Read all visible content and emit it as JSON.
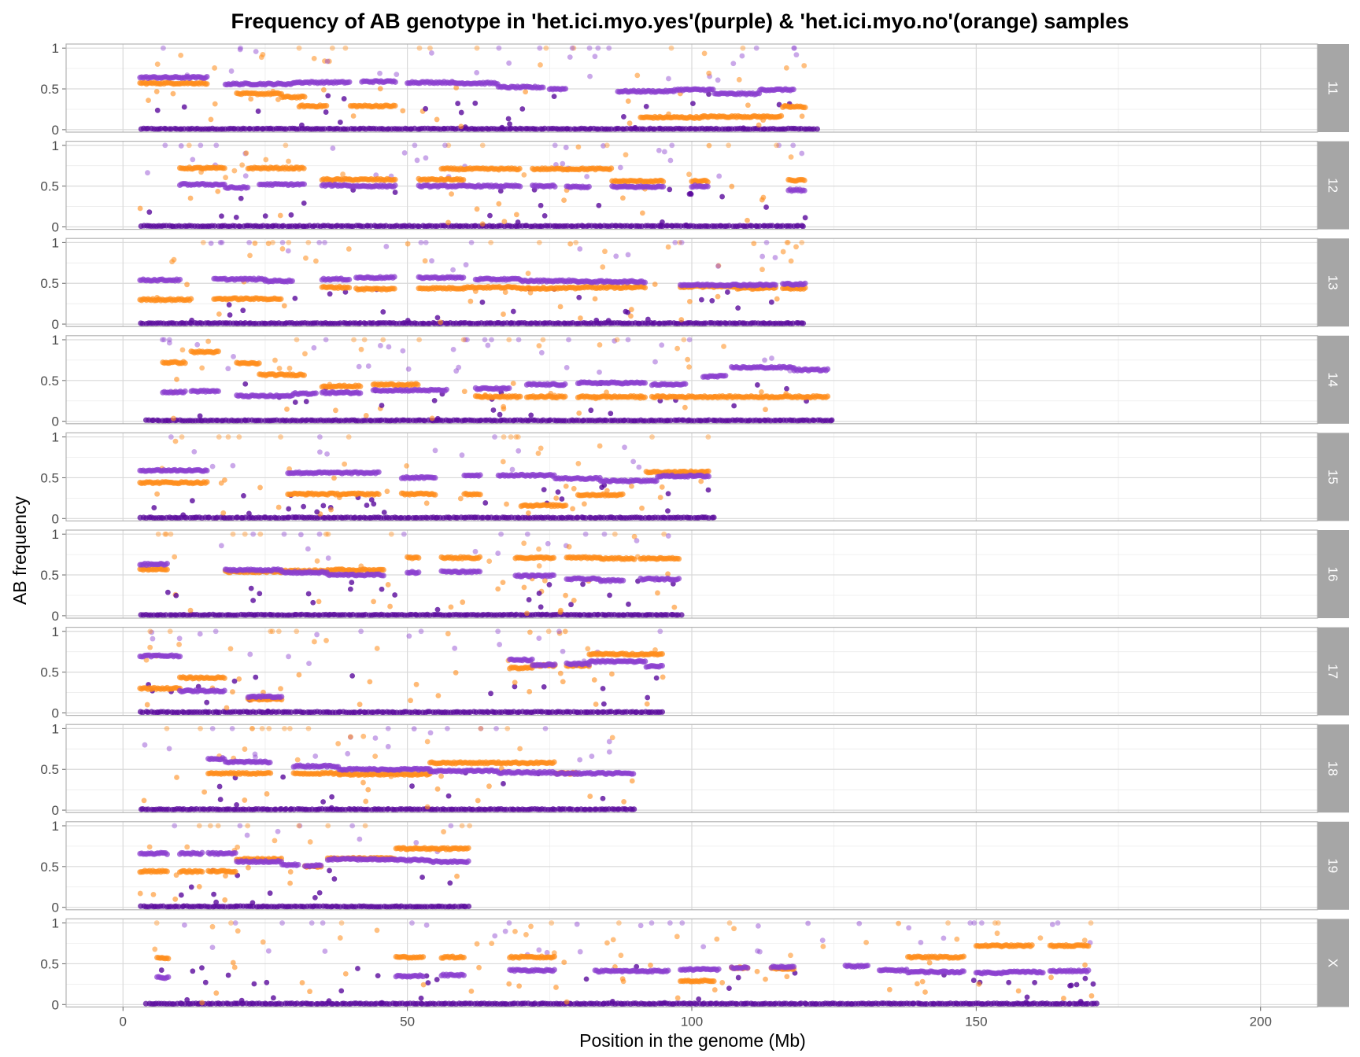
{
  "chart_data": {
    "type": "scatter",
    "title": "Frequency of AB genotype in 'het.ici.myo.yes'(purple) & 'het.ici.myo.no'(orange) samples",
    "xlabel": "Position in the genome (Mb)",
    "ylabel": "AB frequency",
    "xlim": [
      -10,
      210
    ],
    "ylim": [
      -0.03,
      1.05
    ],
    "x_ticks": [
      0,
      50,
      100,
      150,
      200
    ],
    "y_ticks": [
      0,
      0.5,
      1
    ],
    "y_tick_labels": [
      "0",
      "0.5",
      "1"
    ],
    "grid": true,
    "facets": "rows, strip labels on right",
    "colors": {
      "het_ici_myo_yes": "#8a3fcf",
      "het_ici_myo_yes_zero": "#5a0a9c",
      "het_ici_myo_no": "#ff8c1a",
      "strip_bg": "#a6a6a6",
      "panel_border": "#b3b3b3",
      "grid_major": "#d9d9d9",
      "grid_minor": "#ececec"
    },
    "panels": [
      {
        "label": "11",
        "start": 3,
        "end": 122,
        "purple": [
          [
            3,
            15,
            0.64
          ],
          [
            18,
            30,
            0.56
          ],
          [
            30,
            40,
            0.58
          ],
          [
            42,
            48,
            0.59
          ],
          [
            50,
            58,
            0.58
          ],
          [
            58,
            66,
            0.57
          ],
          [
            66,
            74,
            0.52
          ],
          [
            75,
            78,
            0.5
          ],
          [
            87,
            97,
            0.47
          ],
          [
            97,
            104,
            0.49
          ],
          [
            104,
            112,
            0.44
          ],
          [
            112,
            118,
            0.49
          ]
        ],
        "orange": [
          [
            3,
            15,
            0.57
          ],
          [
            20,
            28,
            0.44
          ],
          [
            28,
            32,
            0.4
          ],
          [
            31,
            36,
            0.29
          ],
          [
            40,
            48,
            0.29
          ],
          [
            91,
            102,
            0.15
          ],
          [
            102,
            116,
            0.16
          ],
          [
            116,
            120,
            0.28
          ]
        ]
      },
      {
        "label": "12",
        "start": 3,
        "end": 120,
        "purple": [
          [
            10,
            18,
            0.52
          ],
          [
            18,
            22,
            0.48
          ],
          [
            24,
            32,
            0.52
          ],
          [
            35,
            40,
            0.51
          ],
          [
            40,
            48,
            0.5
          ],
          [
            52,
            60,
            0.5
          ],
          [
            60,
            70,
            0.5
          ],
          [
            72,
            76,
            0.5
          ],
          [
            78,
            82,
            0.49
          ],
          [
            86,
            95,
            0.49
          ],
          [
            100,
            103,
            0.5
          ],
          [
            117,
            120,
            0.45
          ]
        ],
        "orange": [
          [
            10,
            18,
            0.72
          ],
          [
            22,
            32,
            0.72
          ],
          [
            35,
            40,
            0.58
          ],
          [
            40,
            48,
            0.58
          ],
          [
            52,
            60,
            0.58
          ],
          [
            56,
            70,
            0.71
          ],
          [
            72,
            78,
            0.71
          ],
          [
            78,
            86,
            0.71
          ],
          [
            86,
            95,
            0.56
          ],
          [
            100,
            103,
            0.56
          ],
          [
            117,
            120,
            0.57
          ]
        ]
      },
      {
        "label": "13",
        "start": 3,
        "end": 120,
        "purple": [
          [
            3,
            10,
            0.54
          ],
          [
            16,
            25,
            0.55
          ],
          [
            25,
            30,
            0.53
          ],
          [
            35,
            40,
            0.55
          ],
          [
            41,
            48,
            0.57
          ],
          [
            52,
            60,
            0.57
          ],
          [
            62,
            70,
            0.55
          ],
          [
            70,
            80,
            0.53
          ],
          [
            80,
            92,
            0.52
          ],
          [
            98,
            108,
            0.48
          ],
          [
            108,
            115,
            0.48
          ],
          [
            116,
            120,
            0.49
          ]
        ],
        "orange": [
          [
            3,
            12,
            0.3
          ],
          [
            16,
            28,
            0.31
          ],
          [
            35,
            40,
            0.45
          ],
          [
            41,
            48,
            0.43
          ],
          [
            52,
            60,
            0.44
          ],
          [
            60,
            70,
            0.45
          ],
          [
            70,
            80,
            0.44
          ],
          [
            80,
            92,
            0.45
          ],
          [
            98,
            108,
            0.46
          ],
          [
            108,
            115,
            0.44
          ],
          [
            116,
            120,
            0.44
          ]
        ]
      },
      {
        "label": "14",
        "start": 4,
        "end": 125,
        "purple": [
          [
            7,
            11,
            0.36
          ],
          [
            12,
            17,
            0.37
          ],
          [
            20,
            30,
            0.31
          ],
          [
            30,
            34,
            0.34
          ],
          [
            35,
            42,
            0.35
          ],
          [
            44,
            57,
            0.38
          ],
          [
            62,
            68,
            0.4
          ],
          [
            71,
            78,
            0.45
          ],
          [
            80,
            92,
            0.47
          ],
          [
            93,
            99,
            0.45
          ],
          [
            102,
            106,
            0.55
          ],
          [
            107,
            118,
            0.66
          ],
          [
            118,
            124,
            0.63
          ]
        ],
        "orange": [
          [
            7,
            11,
            0.72
          ],
          [
            12,
            17,
            0.85
          ],
          [
            20,
            24,
            0.71
          ],
          [
            24,
            32,
            0.57
          ],
          [
            35,
            42,
            0.43
          ],
          [
            44,
            52,
            0.45
          ],
          [
            62,
            70,
            0.3
          ],
          [
            71,
            78,
            0.3
          ],
          [
            80,
            92,
            0.3
          ],
          [
            93,
            104,
            0.3
          ],
          [
            104,
            124,
            0.3
          ]
        ]
      },
      {
        "label": "15",
        "start": 3,
        "end": 104,
        "purple": [
          [
            3,
            15,
            0.59
          ],
          [
            29,
            45,
            0.56
          ],
          [
            49,
            55,
            0.5
          ],
          [
            60,
            63,
            0.53
          ],
          [
            66,
            76,
            0.53
          ],
          [
            76,
            84,
            0.49
          ],
          [
            84,
            94,
            0.46
          ],
          [
            94,
            103,
            0.52
          ]
        ],
        "orange": [
          [
            3,
            15,
            0.44
          ],
          [
            29,
            45,
            0.3
          ],
          [
            49,
            55,
            0.3
          ],
          [
            60,
            63,
            0.3
          ],
          [
            70,
            78,
            0.16
          ],
          [
            80,
            88,
            0.29
          ],
          [
            92,
            103,
            0.57
          ]
        ]
      },
      {
        "label": "16",
        "start": 3,
        "end": 98,
        "purple": [
          [
            3,
            8,
            0.63
          ],
          [
            18,
            28,
            0.56
          ],
          [
            28,
            36,
            0.53
          ],
          [
            36,
            46,
            0.5
          ],
          [
            50,
            52,
            0.53
          ],
          [
            56,
            63,
            0.54
          ],
          [
            69,
            76,
            0.49
          ],
          [
            78,
            84,
            0.45
          ],
          [
            84,
            88,
            0.43
          ],
          [
            91,
            98,
            0.45
          ]
        ],
        "orange": [
          [
            3,
            8,
            0.57
          ],
          [
            18,
            28,
            0.54
          ],
          [
            28,
            36,
            0.55
          ],
          [
            36,
            46,
            0.56
          ],
          [
            50,
            52,
            0.71
          ],
          [
            56,
            63,
            0.71
          ],
          [
            69,
            76,
            0.71
          ],
          [
            78,
            84,
            0.71
          ],
          [
            84,
            90,
            0.7
          ],
          [
            91,
            98,
            0.7
          ]
        ]
      },
      {
        "label": "17",
        "start": 3,
        "end": 95,
        "purple": [
          [
            3,
            10,
            0.7
          ],
          [
            10,
            18,
            0.27
          ],
          [
            22,
            28,
            0.2
          ],
          [
            68,
            72,
            0.65
          ],
          [
            72,
            76,
            0.59
          ],
          [
            78,
            82,
            0.6
          ],
          [
            82,
            92,
            0.63
          ],
          [
            92,
            95,
            0.57
          ]
        ],
        "orange": [
          [
            3,
            10,
            0.3
          ],
          [
            10,
            18,
            0.43
          ],
          [
            22,
            28,
            0.17
          ],
          [
            68,
            72,
            0.55
          ],
          [
            72,
            76,
            0.58
          ],
          [
            78,
            82,
            0.58
          ],
          [
            82,
            92,
            0.72
          ],
          [
            92,
            95,
            0.72
          ]
        ]
      },
      {
        "label": "18",
        "start": 3,
        "end": 90,
        "purple": [
          [
            15,
            18,
            0.63
          ],
          [
            18,
            26,
            0.59
          ],
          [
            30,
            38,
            0.54
          ],
          [
            38,
            54,
            0.5
          ],
          [
            54,
            66,
            0.48
          ],
          [
            66,
            76,
            0.46
          ],
          [
            76,
            90,
            0.45
          ]
        ],
        "orange": [
          [
            15,
            26,
            0.45
          ],
          [
            30,
            38,
            0.45
          ],
          [
            38,
            54,
            0.44
          ],
          [
            54,
            66,
            0.58
          ],
          [
            66,
            76,
            0.58
          ],
          [
            76,
            80,
            0.45
          ]
        ]
      },
      {
        "label": "19",
        "start": 3,
        "end": 61,
        "purple": [
          [
            3,
            8,
            0.66
          ],
          [
            10,
            14,
            0.66
          ],
          [
            15,
            20,
            0.66
          ],
          [
            20,
            28,
            0.56
          ],
          [
            28,
            31,
            0.52
          ],
          [
            32,
            35,
            0.51
          ],
          [
            36,
            48,
            0.59
          ],
          [
            48,
            54,
            0.58
          ],
          [
            54,
            61,
            0.56
          ]
        ],
        "orange": [
          [
            3,
            8,
            0.44
          ],
          [
            10,
            14,
            0.44
          ],
          [
            15,
            20,
            0.44
          ],
          [
            20,
            28,
            0.59
          ],
          [
            32,
            35,
            0.5
          ],
          [
            36,
            48,
            0.6
          ],
          [
            48,
            54,
            0.72
          ],
          [
            54,
            61,
            0.72
          ]
        ]
      },
      {
        "label": "X",
        "start": 4,
        "end": 171,
        "purple": [
          [
            6,
            8,
            0.33
          ],
          [
            48,
            53,
            0.35
          ],
          [
            56,
            60,
            0.36
          ],
          [
            68,
            76,
            0.42
          ],
          [
            83,
            88,
            0.41
          ],
          [
            88,
            96,
            0.41
          ],
          [
            98,
            105,
            0.43
          ],
          [
            107,
            110,
            0.45
          ],
          [
            114,
            118,
            0.46
          ],
          [
            127,
            131,
            0.47
          ],
          [
            133,
            138,
            0.42
          ],
          [
            138,
            148,
            0.4
          ],
          [
            150,
            155,
            0.39
          ],
          [
            155,
            162,
            0.4
          ],
          [
            163,
            170,
            0.41
          ]
        ],
        "orange": [
          [
            6,
            8,
            0.57
          ],
          [
            48,
            53,
            0.58
          ],
          [
            56,
            60,
            0.58
          ],
          [
            68,
            76,
            0.58
          ],
          [
            98,
            104,
            0.29
          ],
          [
            107,
            110,
            0.45
          ],
          [
            114,
            118,
            0.44
          ],
          [
            138,
            148,
            0.58
          ],
          [
            150,
            160,
            0.72
          ],
          [
            163,
            170,
            0.72
          ]
        ]
      }
    ]
  }
}
